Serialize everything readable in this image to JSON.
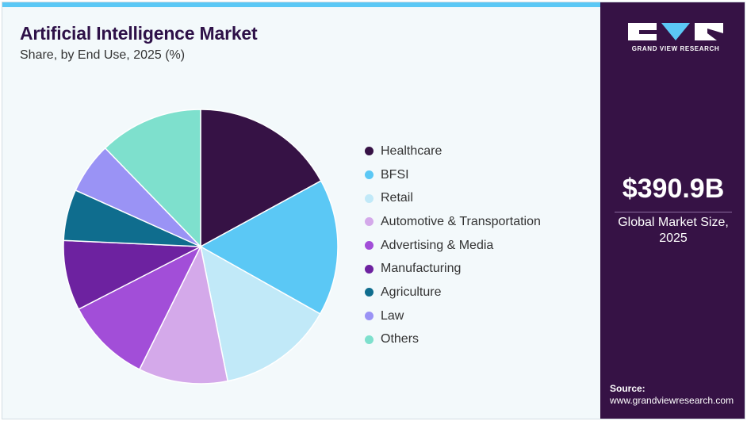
{
  "header": {
    "title": "Artificial Intelligence Market",
    "subtitle": "Share, by End Use, 2025 (%)"
  },
  "chart_data": {
    "type": "pie",
    "title": "Artificial Intelligence Market",
    "subtitle": "Share, by End Use, 2025 (%)",
    "start_angle_deg": 0,
    "direction": "clockwise",
    "legend_position": "right",
    "categories": [
      "Healthcare",
      "BFSI",
      "Retail",
      "Automotive & Transportation",
      "Advertising & Media",
      "Manufacturing",
      "Agriculture",
      "Law",
      "Others"
    ],
    "values": [
      16.7,
      15.8,
      13.4,
      10.3,
      9.9,
      8.1,
      5.9,
      5.9,
      12.0
    ],
    "colors": [
      "#361245",
      "#5bc8f5",
      "#c1e9f8",
      "#d4a9ea",
      "#a24ed8",
      "#6d22a0",
      "#0f6d8e",
      "#9a93f5",
      "#7ee0cd"
    ]
  },
  "side_panel": {
    "logo_text": "GRAND VIEW RESEARCH",
    "market_value": "$390.9B",
    "market_label_line1": "Global Market Size,",
    "market_label_line2": "2025",
    "source_title": "Source:",
    "source_url": "www.grandviewresearch.com"
  },
  "colors": {
    "side_bg": "#361245",
    "top_accent": "#5bc8f5",
    "title": "#2e1148"
  }
}
